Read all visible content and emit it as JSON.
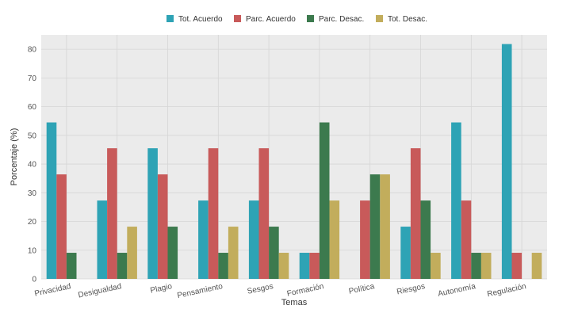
{
  "chart_data": {
    "type": "bar",
    "xlabel": "Temas",
    "ylabel": "Porcentaje (%)",
    "ylim": [
      0,
      85
    ],
    "yticks": [
      0,
      10,
      20,
      30,
      40,
      50,
      60,
      70,
      80
    ],
    "grid": true,
    "legend_position": "top",
    "categories": [
      "Privacidad",
      "Desigualdad",
      "Plagio",
      "Pensamiento",
      "Sesgos",
      "Formación",
      "Política",
      "Riesgos",
      "Autonomía",
      "Regulación"
    ],
    "series": [
      {
        "name": "Tot. Acuerdo",
        "color": "#2ea3b5",
        "values": [
          54.5,
          27.3,
          45.5,
          27.3,
          27.3,
          9.1,
          0,
          18.2,
          54.5,
          81.8
        ]
      },
      {
        "name": "Parc. Acuerdo",
        "color": "#c85a5a",
        "values": [
          36.4,
          45.5,
          36.4,
          45.5,
          45.5,
          9.1,
          27.3,
          45.5,
          27.3,
          9.1
        ]
      },
      {
        "name": "Parc. Desac.",
        "color": "#3c7a4e",
        "values": [
          9.1,
          9.1,
          18.2,
          9.1,
          18.2,
          54.5,
          36.4,
          27.3,
          9.1,
          0
        ]
      },
      {
        "name": "Tot. Desac.",
        "color": "#c2ad5c",
        "values": [
          0,
          18.2,
          0,
          18.2,
          9.1,
          27.3,
          36.4,
          9.1,
          9.1,
          9.1
        ]
      }
    ],
    "colors": {
      "panel_background": "#ebebeb",
      "gridline": "#d6d6d6"
    }
  }
}
